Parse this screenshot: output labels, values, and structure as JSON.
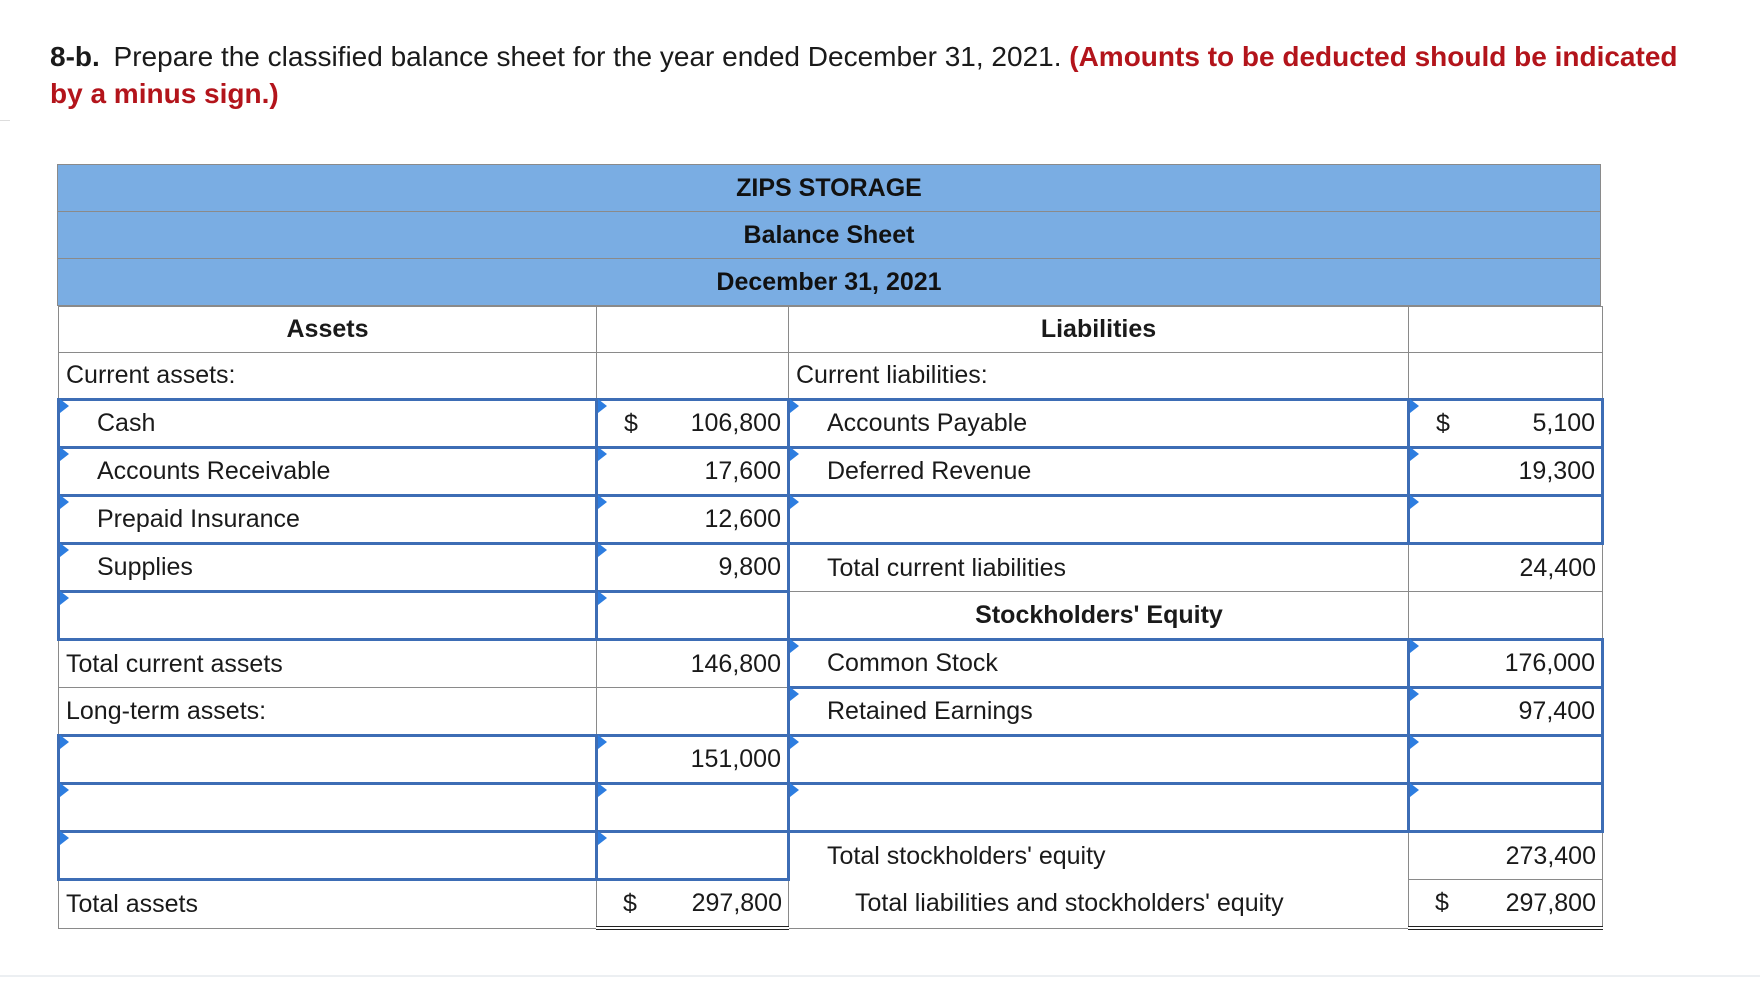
{
  "question": {
    "number": "8-b.",
    "text": " Prepare the classified balance sheet for the year ended December 31, 2021. ",
    "instruction": "(Amounts to be deducted should be indicated by a minus sign.)"
  },
  "sheet": {
    "company": "ZIPS STORAGE",
    "title": "Balance Sheet",
    "date": "December 31, 2021",
    "assets_header": "Assets",
    "liabilities_header": "Liabilities",
    "current_assets_label": "Current assets:",
    "current_liabilities_label": "Current liabilities:",
    "assets": [
      {
        "name": "Cash",
        "dollar": "$",
        "value": "106,800"
      },
      {
        "name": "Accounts Receivable",
        "dollar": "",
        "value": "17,600"
      },
      {
        "name": "Prepaid Insurance",
        "dollar": "",
        "value": "12,600"
      },
      {
        "name": "Supplies",
        "dollar": "",
        "value": "9,800"
      },
      {
        "name": "",
        "dollar": "",
        "value": ""
      }
    ],
    "liabilities": [
      {
        "name": "Accounts Payable",
        "dollar": "$",
        "value": "5,100"
      },
      {
        "name": "Deferred Revenue",
        "dollar": "",
        "value": "19,300"
      },
      {
        "name": "",
        "dollar": "",
        "value": ""
      }
    ],
    "total_current_liabilities_label": "Total current liabilities",
    "total_current_liabilities": "24,400",
    "equity_header": "Stockholders' Equity",
    "total_current_assets_label": "Total current assets",
    "total_current_assets": "146,800",
    "long_term_label": "Long-term assets:",
    "long_term_value": "151,000",
    "equity": [
      {
        "name": "Common Stock",
        "value": "176,000"
      },
      {
        "name": "Retained Earnings",
        "value": "97,400"
      }
    ],
    "total_equity_label": "Total stockholders' equity",
    "total_equity": "273,400",
    "total_assets_label": "Total assets",
    "total_assets_dollar": "$",
    "total_assets": "297,800",
    "total_le_label": "Total liabilities and stockholders' equity",
    "total_le_dollar": "$",
    "total_le": "297,800"
  }
}
